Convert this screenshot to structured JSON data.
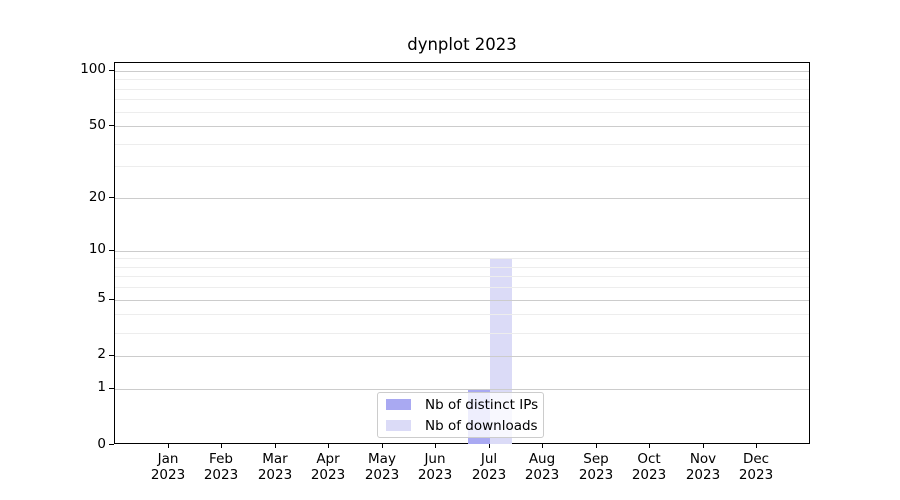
{
  "title": "dynplot 2023",
  "chart_data": {
    "type": "bar",
    "title": "dynplot 2023",
    "categories": [
      "Jan 2023",
      "Feb 2023",
      "Mar 2023",
      "Apr 2023",
      "May 2023",
      "Jun 2023",
      "Jul 2023",
      "Aug 2023",
      "Sep 2023",
      "Oct 2023",
      "Nov 2023",
      "Dec 2023"
    ],
    "month_labels": [
      "Jan",
      "Feb",
      "Mar",
      "Apr",
      "May",
      "Jun",
      "Jul",
      "Aug",
      "Sep",
      "Oct",
      "Nov",
      "Dec"
    ],
    "year_label": "2023",
    "series": [
      {
        "name": "Nb of distinct IPs",
        "color": "#a9a9f2",
        "values": [
          0,
          0,
          0,
          0,
          0,
          0,
          1,
          0,
          0,
          0,
          0,
          0
        ]
      },
      {
        "name": "Nb of downloads",
        "color": "#dbdbf7",
        "values": [
          0,
          0,
          0,
          0,
          0,
          0,
          9,
          0,
          0,
          0,
          0,
          0
        ]
      }
    ],
    "xlabel": "",
    "ylabel": "",
    "yscale": "log1p",
    "ylim": [
      0,
      110
    ],
    "y_major_ticks": [
      0,
      1,
      2,
      5,
      10,
      20,
      50,
      100
    ],
    "y_minor_ticks": [
      3,
      4,
      6,
      7,
      8,
      9,
      30,
      40,
      60,
      70,
      80,
      90
    ],
    "grid": true,
    "legend_position": "lower center",
    "colors": {
      "major_grid": "#cccccc",
      "minor_grid": "#ededed",
      "spine": "#000000",
      "text": "#000000",
      "legend_border": "#cccccc"
    }
  }
}
